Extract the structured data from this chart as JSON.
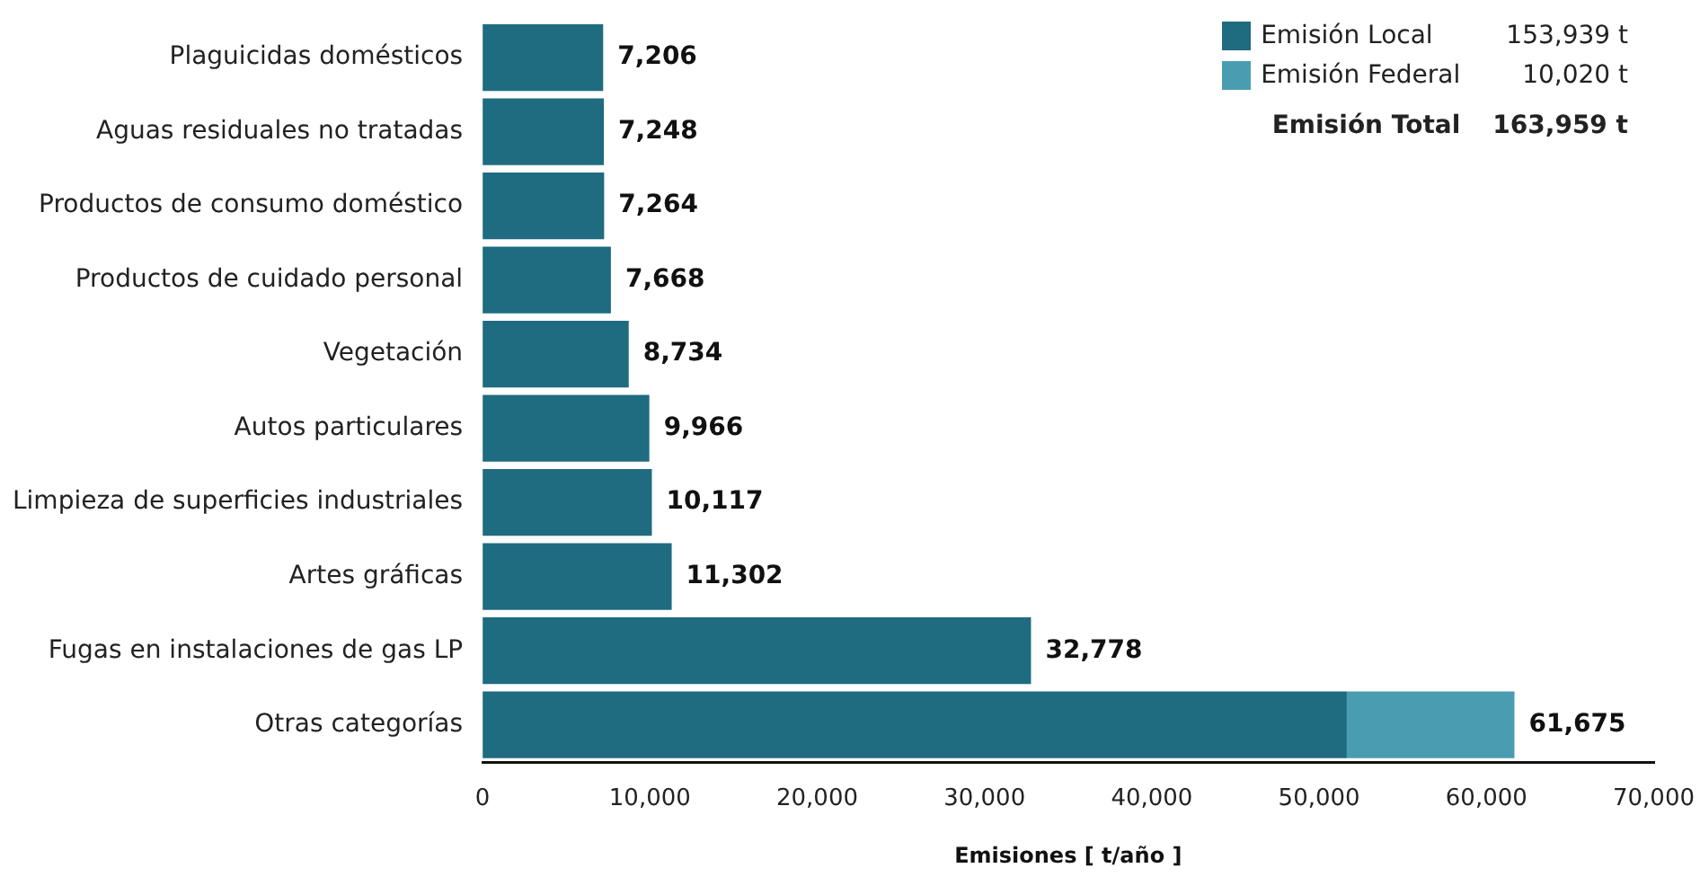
{
  "chart_data": {
    "type": "bar",
    "orientation": "horizontal",
    "stacked": true,
    "xlabel": "Emisiones [ t/año ]",
    "categories": [
      "Plaguicidas domésticos",
      "Aguas residuales no tratadas",
      "Productos de consumo doméstico",
      "Productos de cuidado personal",
      "Vegetación",
      "Autos particulares",
      "Limpieza de superficies industriales",
      "Artes gráficas",
      "Fugas en instalaciones de gas LP",
      "Otras categorías"
    ],
    "series": [
      {
        "name": "Emisión Local",
        "color": "#1f6b80",
        "values": [
          7206,
          7248,
          7264,
          7668,
          8734,
          9966,
          10117,
          11302,
          32778,
          51655
        ]
      },
      {
        "name": "Emisión Federal",
        "color": "#4a9db0",
        "values": [
          null,
          null,
          null,
          null,
          null,
          null,
          null,
          null,
          null,
          10020
        ]
      }
    ],
    "totals": [
      "7,206",
      "7,248",
      "7,264",
      "7,668",
      "8,734",
      "9,966",
      "10,117",
      "11,302",
      "32,778",
      "61,675"
    ],
    "xlim": [
      0,
      70000
    ],
    "xticks": [
      {
        "value": 0,
        "label": "0"
      },
      {
        "value": 10000,
        "label": "10,000"
      },
      {
        "value": 20000,
        "label": "20,000"
      },
      {
        "value": 30000,
        "label": "30,000"
      },
      {
        "value": 40000,
        "label": "40,000"
      },
      {
        "value": 50000,
        "label": "50,000"
      },
      {
        "value": 60000,
        "label": "60,000"
      },
      {
        "value": 70000,
        "label": "70,000"
      }
    ],
    "grid": false,
    "legend": "top right",
    "annotations": [
      "153,939 t",
      "10,020 t",
      "Emisión Total",
      "163,959 t"
    ]
  }
}
